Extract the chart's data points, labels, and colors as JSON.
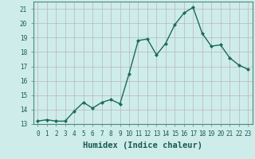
{
  "x": [
    0,
    1,
    2,
    3,
    4,
    5,
    6,
    7,
    8,
    9,
    10,
    11,
    12,
    13,
    14,
    15,
    16,
    17,
    18,
    19,
    20,
    21,
    22,
    23
  ],
  "y": [
    13.2,
    13.3,
    13.2,
    13.2,
    13.9,
    14.5,
    14.1,
    14.5,
    14.7,
    14.4,
    16.5,
    18.8,
    18.9,
    17.8,
    18.6,
    19.9,
    20.7,
    21.1,
    19.3,
    18.4,
    18.5,
    17.6,
    17.1,
    16.8
  ],
  "line_color": "#1a6b5a",
  "marker": "D",
  "marker_size": 2,
  "bg_color": "#ceecea",
  "grid_color_major": "#b8b8b8",
  "grid_color_minor": "#d8d8d8",
  "xlabel": "Humidex (Indice chaleur)",
  "xlim": [
    -0.5,
    23.5
  ],
  "ylim": [
    13,
    21.5
  ],
  "yticks": [
    13,
    14,
    15,
    16,
    17,
    18,
    19,
    20,
    21
  ],
  "xticks": [
    0,
    1,
    2,
    3,
    4,
    5,
    6,
    7,
    8,
    9,
    10,
    11,
    12,
    13,
    14,
    15,
    16,
    17,
    18,
    19,
    20,
    21,
    22,
    23
  ],
  "tick_fontsize": 5.5,
  "xlabel_fontsize": 7.5,
  "line_width": 1.0
}
